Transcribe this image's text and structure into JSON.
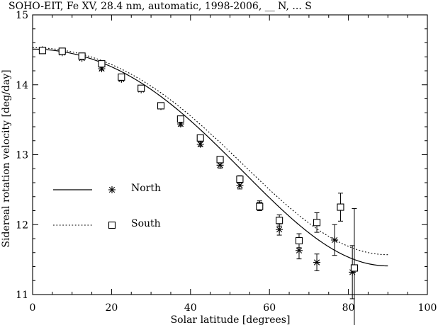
{
  "chart_data": {
    "type": "scatter",
    "title": "SOHO-EIT, Fe XV, 28.4 nm, automatic, 1998-2006, __ N, ... S",
    "xlabel": "Solar latitude [degrees]",
    "ylabel": "Sidereal rotation velocity [deg/day]",
    "xlim": [
      0,
      100
    ],
    "ylim": [
      11,
      15
    ],
    "x_ticks": [
      "0",
      "20",
      "40",
      "60",
      "80",
      "100"
    ],
    "y_ticks": [
      "11",
      "12",
      "13",
      "14",
      "15"
    ],
    "grid": false,
    "legend": {
      "placement": "left-middle",
      "entries": [
        {
          "label": "North",
          "line": "solid",
          "marker": "asterisk"
        },
        {
          "label": "South",
          "line": "dotted",
          "marker": "square"
        }
      ]
    },
    "series": [
      {
        "name": "North",
        "marker": "asterisk",
        "points": [
          {
            "x": 2.5,
            "y": 14.5,
            "err": 0.02
          },
          {
            "x": 7.5,
            "y": 14.46,
            "err": 0.02
          },
          {
            "x": 12.5,
            "y": 14.38,
            "err": 0.02
          },
          {
            "x": 17.5,
            "y": 14.23,
            "err": 0.02
          },
          {
            "x": 22.5,
            "y": 14.08,
            "err": 0.02
          },
          {
            "x": 27.5,
            "y": 13.93,
            "err": 0.02
          },
          {
            "x": 32.5,
            "y": 13.69,
            "err": 0.02
          },
          {
            "x": 37.5,
            "y": 13.44,
            "err": 0.03
          },
          {
            "x": 42.5,
            "y": 13.15,
            "err": 0.03
          },
          {
            "x": 47.5,
            "y": 12.85,
            "err": 0.04
          },
          {
            "x": 52.5,
            "y": 12.56,
            "err": 0.05
          },
          {
            "x": 57.5,
            "y": 12.28,
            "err": 0.06
          },
          {
            "x": 62.5,
            "y": 11.93,
            "err": 0.08
          },
          {
            "x": 67.5,
            "y": 11.63,
            "err": 0.12
          },
          {
            "x": 72.0,
            "y": 11.46,
            "err": 0.12
          },
          {
            "x": 76.5,
            "y": 11.78,
            "err": 0.22
          },
          {
            "x": 81.0,
            "y": 11.32,
            "err": 0.38
          }
        ]
      },
      {
        "name": "South",
        "marker": "square",
        "points": [
          {
            "x": 2.5,
            "y": 14.49,
            "err": 0.02
          },
          {
            "x": 7.5,
            "y": 14.48,
            "err": 0.02
          },
          {
            "x": 12.5,
            "y": 14.41,
            "err": 0.02
          },
          {
            "x": 17.5,
            "y": 14.3,
            "err": 0.02
          },
          {
            "x": 22.5,
            "y": 14.11,
            "err": 0.02
          },
          {
            "x": 27.5,
            "y": 13.95,
            "err": 0.02
          },
          {
            "x": 32.5,
            "y": 13.7,
            "err": 0.02
          },
          {
            "x": 37.5,
            "y": 13.51,
            "err": 0.03
          },
          {
            "x": 42.5,
            "y": 13.24,
            "err": 0.03
          },
          {
            "x": 47.5,
            "y": 12.93,
            "err": 0.04
          },
          {
            "x": 52.5,
            "y": 12.65,
            "err": 0.05
          },
          {
            "x": 57.5,
            "y": 12.26,
            "err": 0.06
          },
          {
            "x": 62.5,
            "y": 12.06,
            "err": 0.08
          },
          {
            "x": 67.5,
            "y": 11.77,
            "err": 0.1
          },
          {
            "x": 72.0,
            "y": 12.03,
            "err": 0.14
          },
          {
            "x": 78.0,
            "y": 12.25,
            "err": 0.2
          },
          {
            "x": 81.5,
            "y": 11.38,
            "err": 0.85
          }
        ]
      }
    ],
    "fits": [
      {
        "name": "North",
        "style": "solid",
        "A": 14.51,
        "B": -2.04,
        "C": -1.06,
        "x_range": [
          0,
          90
        ]
      },
      {
        "name": "South",
        "style": "dotted",
        "A": 14.53,
        "B": -1.94,
        "C": -1.02,
        "x_range": [
          0,
          90
        ]
      }
    ]
  }
}
